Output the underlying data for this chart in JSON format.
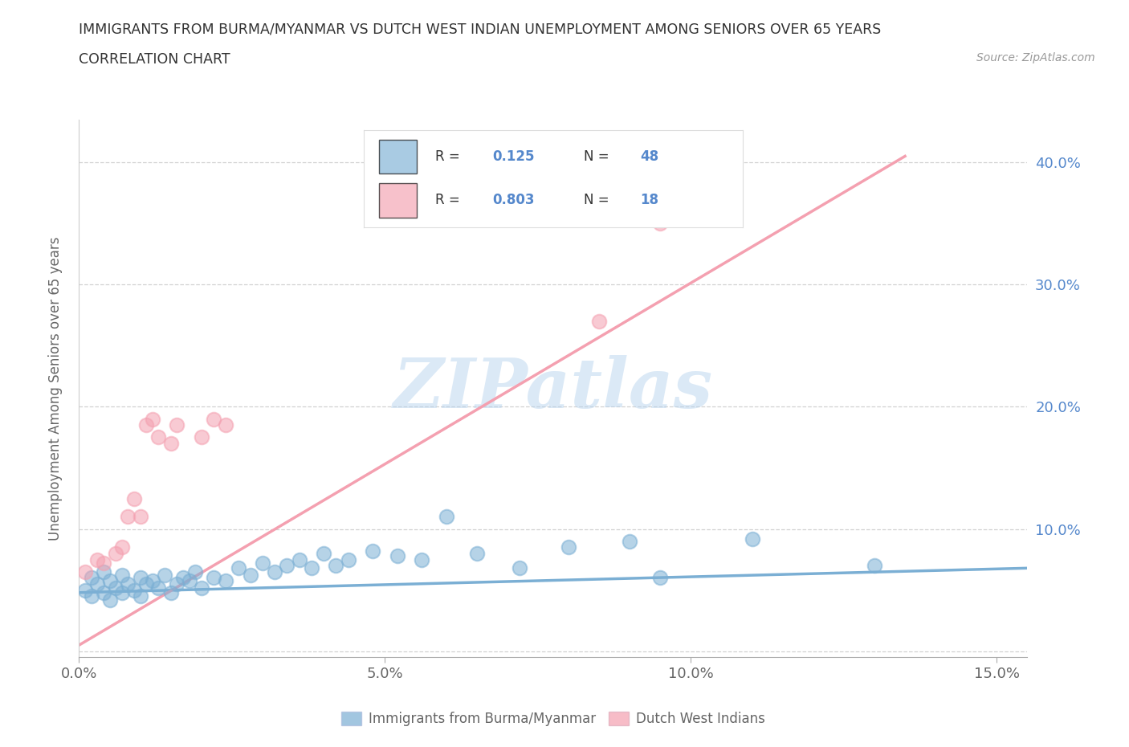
{
  "title_line1": "IMMIGRANTS FROM BURMA/MYANMAR VS DUTCH WEST INDIAN UNEMPLOYMENT AMONG SENIORS OVER 65 YEARS",
  "title_line2": "CORRELATION CHART",
  "source": "Source: ZipAtlas.com",
  "ylabel": "Unemployment Among Seniors over 65 years",
  "watermark_text": "ZIPatlas",
  "xlim": [
    0.0,
    0.155
  ],
  "ylim": [
    -0.005,
    0.435
  ],
  "xticks": [
    0.0,
    0.05,
    0.1,
    0.15
  ],
  "xtick_labels": [
    "0.0%",
    "5.0%",
    "10.0%",
    "15.0%"
  ],
  "yticks": [
    0.0,
    0.1,
    0.2,
    0.3,
    0.4
  ],
  "ytick_labels": [
    "",
    "10.0%",
    "20.0%",
    "30.0%",
    "40.0%"
  ],
  "blue_R": "0.125",
  "blue_N": "48",
  "pink_R": "0.803",
  "pink_N": "18",
  "blue_color": "#7BAFD4",
  "pink_color": "#F4A0B0",
  "blue_scatter_x": [
    0.001,
    0.002,
    0.002,
    0.003,
    0.004,
    0.004,
    0.005,
    0.005,
    0.006,
    0.007,
    0.007,
    0.008,
    0.009,
    0.01,
    0.01,
    0.011,
    0.012,
    0.013,
    0.014,
    0.015,
    0.016,
    0.017,
    0.018,
    0.019,
    0.02,
    0.022,
    0.024,
    0.026,
    0.028,
    0.03,
    0.032,
    0.034,
    0.036,
    0.038,
    0.04,
    0.042,
    0.044,
    0.048,
    0.052,
    0.056,
    0.06,
    0.065,
    0.072,
    0.08,
    0.09,
    0.095,
    0.11,
    0.13
  ],
  "blue_scatter_y": [
    0.05,
    0.045,
    0.06,
    0.055,
    0.048,
    0.065,
    0.042,
    0.058,
    0.052,
    0.048,
    0.062,
    0.055,
    0.05,
    0.06,
    0.045,
    0.055,
    0.058,
    0.052,
    0.062,
    0.048,
    0.055,
    0.06,
    0.058,
    0.065,
    0.052,
    0.06,
    0.058,
    0.068,
    0.062,
    0.072,
    0.065,
    0.07,
    0.075,
    0.068,
    0.08,
    0.07,
    0.075,
    0.082,
    0.078,
    0.075,
    0.11,
    0.08,
    0.068,
    0.085,
    0.09,
    0.06,
    0.092,
    0.07
  ],
  "pink_scatter_x": [
    0.001,
    0.003,
    0.004,
    0.006,
    0.007,
    0.008,
    0.009,
    0.01,
    0.011,
    0.012,
    0.013,
    0.015,
    0.016,
    0.02,
    0.022,
    0.024,
    0.085,
    0.095
  ],
  "pink_scatter_y": [
    0.065,
    0.075,
    0.072,
    0.08,
    0.085,
    0.11,
    0.125,
    0.11,
    0.185,
    0.19,
    0.175,
    0.17,
    0.185,
    0.175,
    0.19,
    0.185,
    0.27,
    0.35
  ],
  "blue_trend_x": [
    0.0,
    0.155
  ],
  "blue_trend_y": [
    0.048,
    0.068
  ],
  "pink_trend_x": [
    0.0,
    0.135
  ],
  "pink_trend_y": [
    0.005,
    0.405
  ],
  "legend_label_blue": "Immigrants from Burma/Myanmar",
  "legend_label_pink": "Dutch West Indians",
  "background_color": "#ffffff",
  "grid_color": "#CCCCCC",
  "right_ylabel_color": "#5588CC",
  "left_ylabel_color": "#666666"
}
